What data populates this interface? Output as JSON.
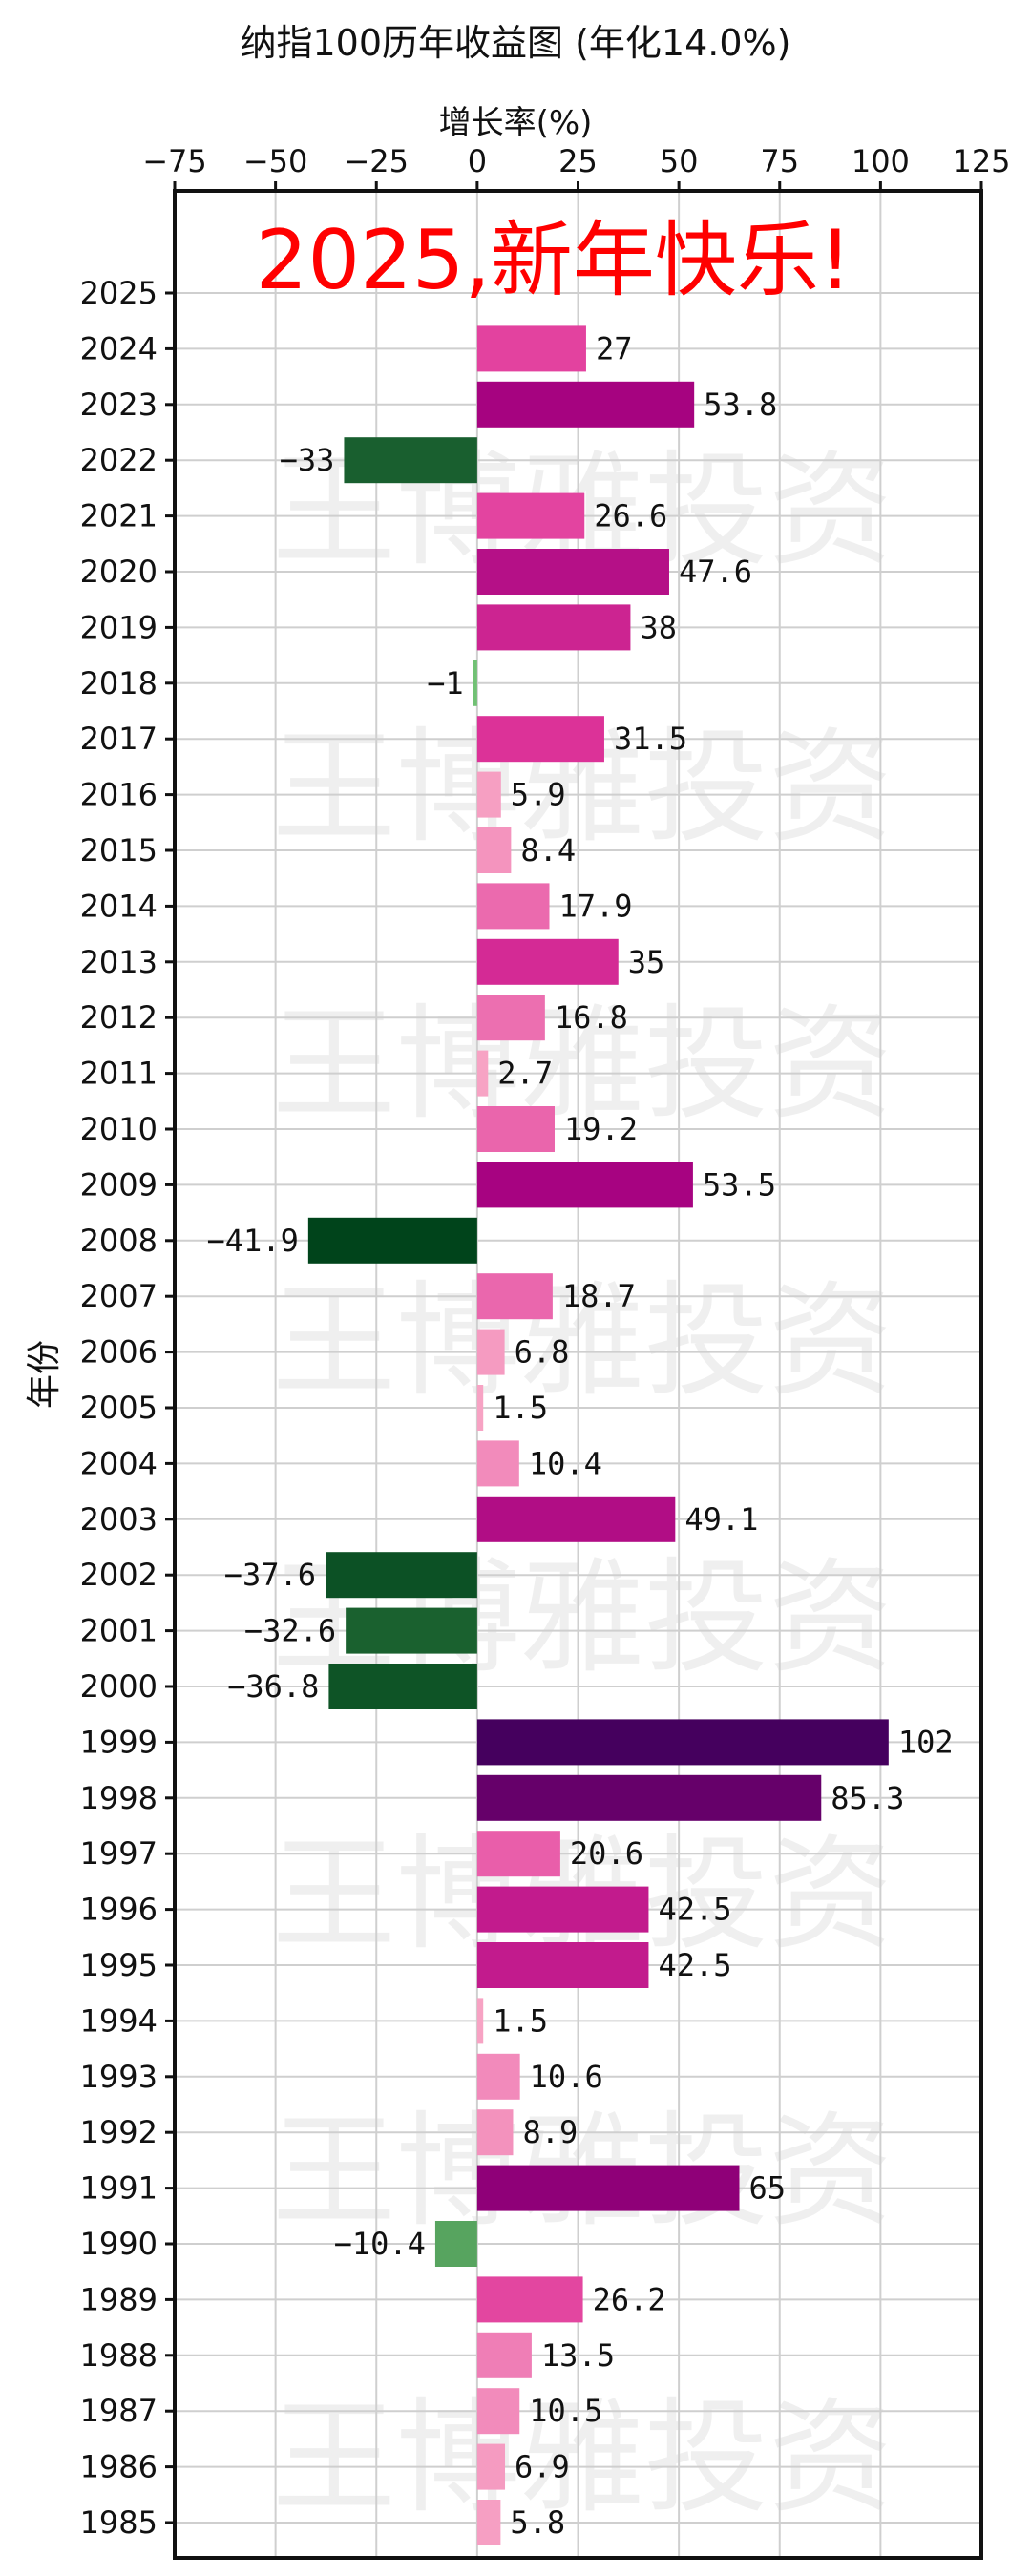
{
  "chart_data": {
    "type": "bar",
    "orientation": "horizontal",
    "title": "纳指100历年收益图 (年化14.0%)",
    "xlabel": "增长率(%)",
    "ylabel": "年份",
    "xlim": [
      -75,
      125
    ],
    "xticks": [
      -75,
      -50,
      -25,
      0,
      25,
      50,
      75,
      100,
      125
    ],
    "xtick_labels": [
      "−75",
      "−50",
      "−25",
      "0",
      "25",
      "50",
      "75",
      "100",
      "125"
    ],
    "grid": true,
    "axis_position": "top",
    "annotation": "2025,新年快乐!",
    "annotation_color": "#ff0000",
    "watermark": "王博雅投资",
    "categories": [
      "2025",
      "2024",
      "2023",
      "2022",
      "2021",
      "2020",
      "2019",
      "2018",
      "2017",
      "2016",
      "2015",
      "2014",
      "2013",
      "2012",
      "2011",
      "2010",
      "2009",
      "2008",
      "2007",
      "2006",
      "2005",
      "2004",
      "2003",
      "2002",
      "2001",
      "2000",
      "1999",
      "1998",
      "1997",
      "1996",
      "1995",
      "1994",
      "1993",
      "1992",
      "1991",
      "1990",
      "1989",
      "1988",
      "1987",
      "1986",
      "1985"
    ],
    "values": [
      null,
      27,
      53.8,
      -33,
      26.6,
      47.6,
      38,
      -1,
      31.5,
      5.9,
      8.4,
      17.9,
      35,
      16.8,
      2.7,
      19.2,
      53.5,
      -41.9,
      18.7,
      6.8,
      1.5,
      10.4,
      49.1,
      -37.6,
      -32.6,
      -36.8,
      102,
      85.3,
      20.6,
      42.5,
      42.5,
      1.5,
      10.6,
      8.9,
      65,
      -10.4,
      26.2,
      13.5,
      10.5,
      6.9,
      5.8
    ],
    "value_labels": [
      "",
      "27",
      "53.8",
      "−33",
      "26.6",
      "47.6",
      "38",
      "−1",
      "31.5",
      "5.9",
      "8.4",
      "17.9",
      "35",
      "16.8",
      "2.7",
      "19.2",
      "53.5",
      "−41.9",
      "18.7",
      "6.8",
      "1.5",
      "10.4",
      "49.1",
      "−37.6",
      "−32.6",
      "−36.8",
      "102",
      "85.3",
      "20.6",
      "42.5",
      "42.5",
      "1.5",
      "10.6",
      "8.9",
      "65",
      "−10.4",
      "26.2",
      "13.5",
      "10.5",
      "6.9",
      "5.8"
    ],
    "colors": {
      "positive_low": "#f7a3c4",
      "positive_mid": "#e0359a",
      "positive_high": "#a3007f",
      "positive_max": "#45005e",
      "negative_low": "#74c476",
      "negative_high": "#00441b"
    }
  }
}
